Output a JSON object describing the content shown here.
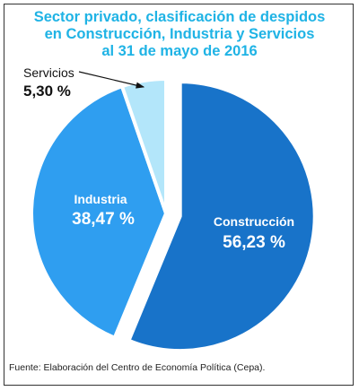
{
  "title": {
    "line1": "Sector privado, clasificación de despidos",
    "line2": "en Construcción, Industria y Servicios",
    "line3": "al 31 de mayo de 2016"
  },
  "source": "Fuente: Elaboración del Centro de Economía Política (Cepa).",
  "chart_data": {
    "type": "pie",
    "title": "Sector privado, clasificación de despidos en Construcción, Industria y Servicios al 31 de mayo de 2016",
    "slices": [
      {
        "label": "Construcción",
        "value": 56.23,
        "value_label": "56,23 %",
        "color": "#1873c9",
        "exploded": true
      },
      {
        "label": "Industria",
        "value": 38.47,
        "value_label": "38,47 %",
        "color": "#2f9ef0",
        "exploded": false
      },
      {
        "label": "Servicios",
        "value": 5.3,
        "value_label": "5,30 %",
        "color": "#b3e6fa",
        "exploded": false
      }
    ]
  }
}
